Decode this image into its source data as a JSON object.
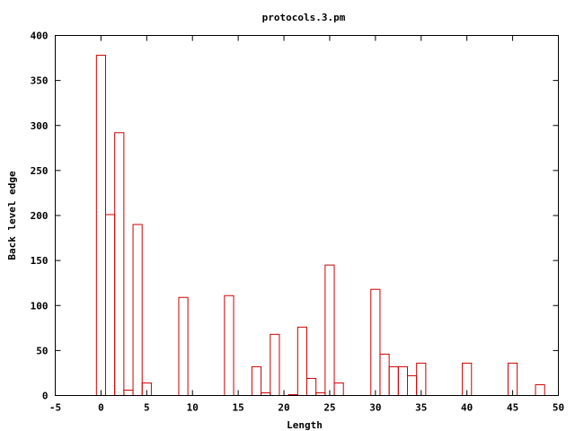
{
  "chart_data": {
    "type": "bar",
    "title": "protocols.3.pm",
    "xlabel": "Length",
    "ylabel": "Back level edge",
    "xlim": [
      -5,
      50
    ],
    "ylim": [
      0,
      400
    ],
    "xticks": [
      "-5",
      "0",
      "5",
      "10",
      "15",
      "20",
      "25",
      "30",
      "35",
      "40",
      "45",
      "50"
    ],
    "yticks": [
      "0",
      "50",
      "100",
      "150",
      "200",
      "250",
      "300",
      "350",
      "400"
    ],
    "grid": false,
    "bar_color": "#cc0000",
    "bars": [
      {
        "x": 0,
        "y": 378
      },
      {
        "x": 1,
        "y": 201
      },
      {
        "x": 2,
        "y": 292
      },
      {
        "x": 3,
        "y": 6
      },
      {
        "x": 4,
        "y": 190
      },
      {
        "x": 5,
        "y": 14
      },
      {
        "x": 9,
        "y": 109
      },
      {
        "x": 14,
        "y": 111
      },
      {
        "x": 17,
        "y": 32
      },
      {
        "x": 18,
        "y": 3
      },
      {
        "x": 19,
        "y": 68
      },
      {
        "x": 21,
        "y": 1
      },
      {
        "x": 22,
        "y": 76
      },
      {
        "x": 23,
        "y": 19
      },
      {
        "x": 24,
        "y": 3
      },
      {
        "x": 25,
        "y": 145
      },
      {
        "x": 26,
        "y": 14
      },
      {
        "x": 30,
        "y": 118
      },
      {
        "x": 31,
        "y": 46
      },
      {
        "x": 32,
        "y": 32
      },
      {
        "x": 33,
        "y": 32
      },
      {
        "x": 34,
        "y": 22
      },
      {
        "x": 35,
        "y": 36
      },
      {
        "x": 40,
        "y": 36
      },
      {
        "x": 45,
        "y": 36
      },
      {
        "x": 48,
        "y": 12
      }
    ]
  }
}
